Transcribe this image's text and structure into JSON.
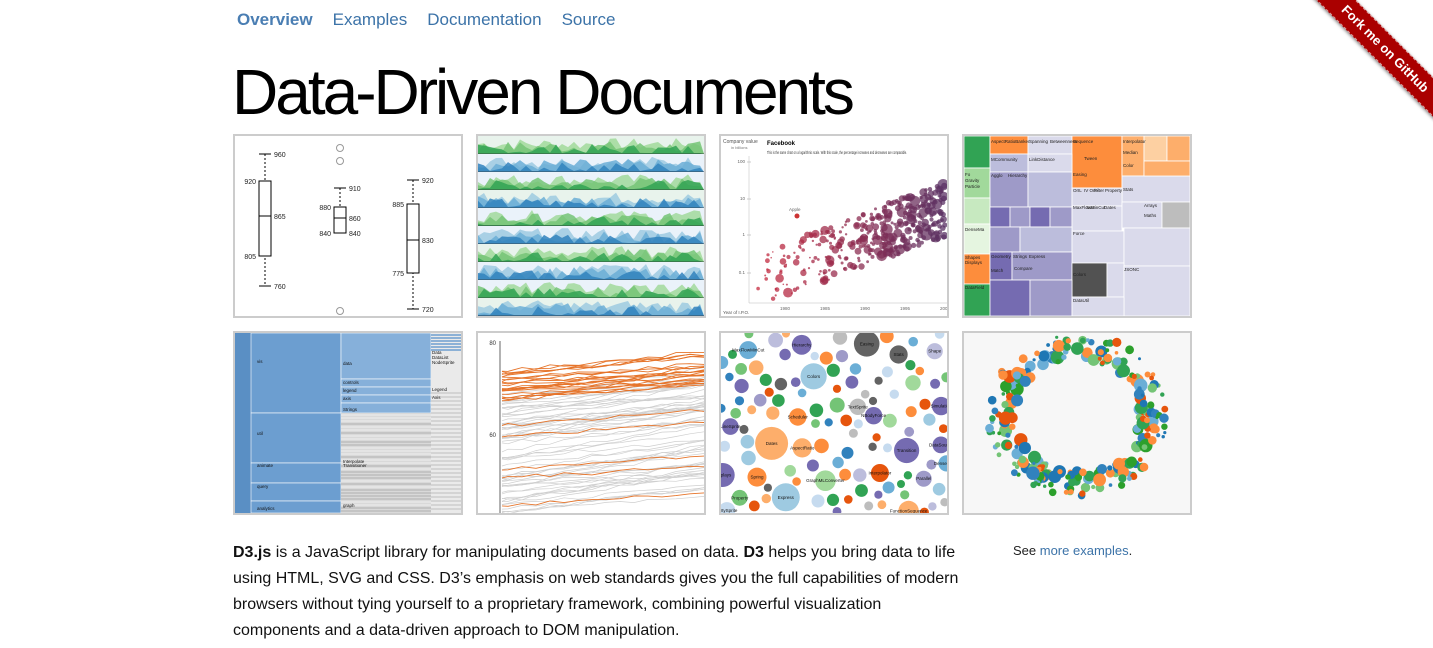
{
  "nav": {
    "items": [
      {
        "label": "Overview",
        "active": true
      },
      {
        "label": "Examples",
        "active": false
      },
      {
        "label": "Documentation",
        "active": false
      },
      {
        "label": "Source",
        "active": false
      }
    ]
  },
  "title": "Data-Driven Documents",
  "ribbon": "Fork me on GitHub",
  "examples": {
    "box_plot": {
      "labels": [
        "960",
        "920",
        "865",
        "805",
        "760",
        "910",
        "880",
        "860",
        "840",
        "840",
        "920",
        "885",
        "830",
        "775",
        "720"
      ]
    },
    "log_scatter": {
      "ylabel": "Company value",
      "ysub": "in billions",
      "heading": "Facebook",
      "caption": "This is the same chart on a logarithmic scale. With this scale, the percentage increases and decreases are comparable.",
      "yticks": [
        "100",
        "10",
        "1",
        "0.1"
      ],
      "xticks": [
        "1980",
        "1985",
        "1990",
        "1995",
        "2000"
      ],
      "xlabel": "Year of I.P.O.",
      "point_label": "Apple"
    },
    "line_chart": {
      "yticks": [
        "80",
        "60"
      ]
    },
    "partition": {
      "labels": [
        "vis",
        "data",
        "controls",
        "legend",
        "axis",
        "util",
        "Strings",
        "animate",
        "Interpolate",
        "Transitioner",
        "query",
        "analytics",
        "graph",
        "Data",
        "DataList",
        "NodeSprite",
        "Legend",
        "Axis"
      ]
    },
    "treemap": {
      "labels": [
        "AspectRatioBanker",
        "Spanning",
        "Betweenness",
        "Sequence",
        "Tween",
        "Easing",
        "Interpolator",
        "MCommunity",
        "LinkDistance",
        "Median",
        "Color",
        "Fo",
        "Gravity",
        "Particle",
        "Agglo",
        "Hierarchy",
        "OrIL",
        "IV Orie",
        "Filter",
        "Property",
        "Stats",
        "MaxFlowMinCut",
        "Sort",
        "Dates",
        "Arrays",
        "Maths",
        "DenseMa",
        "Force",
        "Colors",
        "Shapes",
        "Displays",
        "DataField",
        "DataUtil",
        "JSONC",
        "Geometry",
        "Strings",
        "Express",
        "Compare",
        "Match",
        "Query",
        "StringUt"
      ]
    },
    "bubble": {
      "labels": [
        "Dates",
        "Express",
        "Colors",
        "Easing",
        "Transition",
        "Displays",
        "GraphMLConverter",
        "FunctionSequence",
        "Hierarchy",
        "AspectRatio",
        "Spring",
        "Simulation",
        "Stats",
        "Interpolator",
        "MaxFlowMinCut",
        "Scheduler",
        "NBodyForce",
        "DataSource",
        "DirtySprite",
        "LineSprite",
        "TextSprite",
        "Shape",
        "DenseMatrix",
        "Parallel",
        "Property"
      ]
    }
  },
  "intro": {
    "lead": "D3.js",
    "p1": " is a JavaScript library for manipulating documents based on data. ",
    "d3": "D3",
    "p2": " helps you bring data to life using HTML, SVG and CSS. D3’s emphasis on web standards gives you the full capabilities of modern browsers without tying yourself to a proprietary framework, combining powerful visualization components and a data-driven approach to DOM manipulation."
  },
  "see": {
    "prefix": "See ",
    "link": "more examples",
    "suffix": "."
  }
}
